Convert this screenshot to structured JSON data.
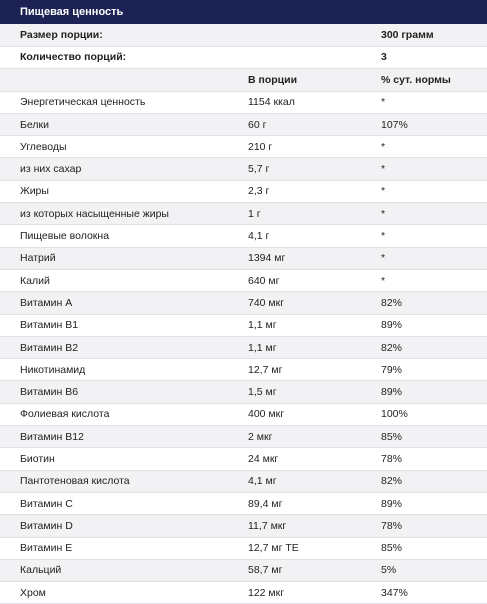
{
  "title": "Пищевая ценность",
  "serving_size": {
    "label": "Размер порции:",
    "value": "300 грамм"
  },
  "servings_count": {
    "label": "Количество порций:",
    "value": "3"
  },
  "columns": {
    "name": "",
    "per_serving": "В порции",
    "daily_value": "% сут. нормы"
  },
  "rows": [
    {
      "name": "Энергетическая ценность",
      "amount": "1154 ккал",
      "dv": "*"
    },
    {
      "name": "Белки",
      "amount": "60 г",
      "dv": "107%"
    },
    {
      "name": "Углеводы",
      "amount": "210 г",
      "dv": "*"
    },
    {
      "name": "из них сахар",
      "amount": "5,7 г",
      "dv": "*"
    },
    {
      "name": "Жиры",
      "amount": "2,3 г",
      "dv": "*"
    },
    {
      "name": "из которых насыщенные жиры",
      "amount": "1 г",
      "dv": "*"
    },
    {
      "name": "Пищевые волокна",
      "amount": "4,1 г",
      "dv": "*"
    },
    {
      "name": "Натрий",
      "amount": "1394 мг",
      "dv": "*"
    },
    {
      "name": "Калий",
      "amount": "640 мг",
      "dv": "*"
    },
    {
      "name": "Витамин A",
      "amount": "740 мкг",
      "dv": "82%"
    },
    {
      "name": "Витамин B1",
      "amount": "1,1 мг",
      "dv": "89%"
    },
    {
      "name": "Витамин B2",
      "amount": "1,1 мг",
      "dv": "82%"
    },
    {
      "name": "Никотинамид",
      "amount": "12,7 мг",
      "dv": "79%"
    },
    {
      "name": "Витамин B6",
      "amount": "1,5 мг",
      "dv": "89%"
    },
    {
      "name": "Фолиевая кислота",
      "amount": "400 мкг",
      "dv": "100%"
    },
    {
      "name": "Витамин B12",
      "amount": "2 мкг",
      "dv": "85%"
    },
    {
      "name": "Биотин",
      "amount": "24 мкг",
      "dv": "78%"
    },
    {
      "name": "Пантотеновая кислота",
      "amount": "4,1 мг",
      "dv": "82%"
    },
    {
      "name": "Витамин C",
      "amount": "89,4 мг",
      "dv": "89%"
    },
    {
      "name": "Витамин D",
      "amount": "11,7 мкг",
      "dv": "78%"
    },
    {
      "name": "Витамин E",
      "amount": "12,7 мг TE",
      "dv": "85%"
    },
    {
      "name": "Кальций",
      "amount": "58,7 мг",
      "dv": "5%"
    },
    {
      "name": "Хром",
      "amount": "122 мкг",
      "dv": "347%"
    }
  ]
}
